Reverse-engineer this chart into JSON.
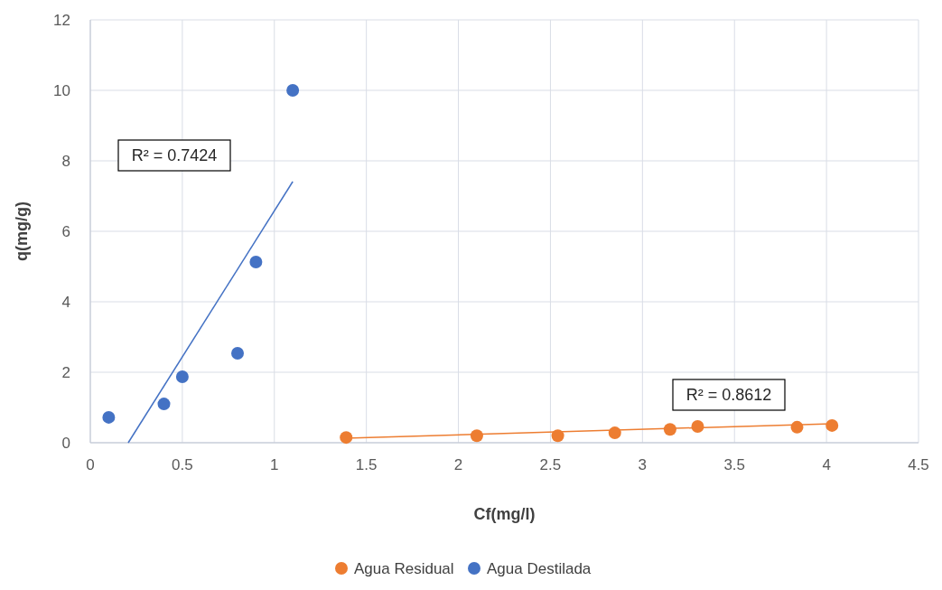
{
  "chart_data": {
    "type": "scatter",
    "xlabel": "Cf(mg/l)",
    "ylabel": "q(mg/g)",
    "xlim": [
      0,
      4.5
    ],
    "xticks": [
      0,
      0.5,
      1,
      1.5,
      2,
      2.5,
      3,
      3.5,
      4,
      4.5
    ],
    "ylim": [
      0,
      12
    ],
    "yticks": [
      0,
      2,
      4,
      6,
      8,
      10,
      12
    ],
    "grid": true,
    "legend": "bottom",
    "series": [
      {
        "name": "Agua Residual",
        "color": "#ed7d31",
        "marker": "circle",
        "x": [
          1.39,
          2.1,
          2.54,
          2.85,
          3.15,
          3.3,
          3.84,
          4.03
        ],
        "values": [
          0.15,
          0.2,
          0.2,
          0.28,
          0.38,
          0.46,
          0.44,
          0.49
        ]
      },
      {
        "name": "Agua Destilada",
        "color": "#4472c4",
        "marker": "circle",
        "x": [
          0.1,
          0.4,
          0.5,
          0.8,
          0.9,
          1.1
        ],
        "values": [
          0.72,
          1.1,
          1.87,
          2.54,
          5.13,
          10.0
        ]
      },
      {
        "type": "line",
        "color": "#ed7d31",
        "x": [
          1.39,
          4.03
        ],
        "values": [
          0.13,
          0.54
        ]
      },
      {
        "type": "line",
        "color": "#4472c4",
        "x": [
          0.206,
          1.1
        ],
        "values": [
          0,
          7.41
        ]
      }
    ],
    "annotations": [
      "R² = 0.7424",
      "R² = 0.8612"
    ]
  }
}
